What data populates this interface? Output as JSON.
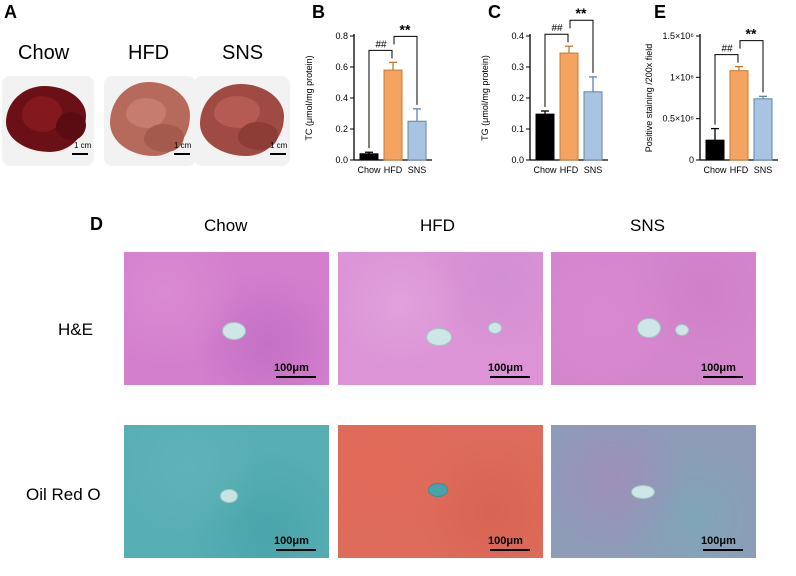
{
  "panels": {
    "A": "A",
    "B": "B",
    "C": "C",
    "D": "D",
    "E": "E"
  },
  "groups": [
    "Chow",
    "HFD",
    "SNS"
  ],
  "liver_scale_label": "1 cm",
  "histology": {
    "rows": [
      "H&E",
      "Oil Red O"
    ],
    "scale_label": "100μm"
  },
  "colors": {
    "Chow": "#000000",
    "HFD": "#f4a460",
    "SNS": "#a9c4e2"
  },
  "chart_data": [
    {
      "panel": "B",
      "type": "bar",
      "categories": [
        "Chow",
        "HFD",
        "SNS"
      ],
      "values": [
        0.04,
        0.58,
        0.25
      ],
      "errors": [
        0.01,
        0.05,
        0.08
      ],
      "ylabel": "TC (μmol/mg protein)",
      "ylim": [
        0,
        0.8
      ],
      "yticks": [
        "0.0",
        "0.2",
        "0.4",
        "0.6",
        "0.8"
      ],
      "annotations": [
        "##",
        "**"
      ]
    },
    {
      "panel": "C",
      "type": "bar",
      "categories": [
        "Chow",
        "HFD",
        "SNS"
      ],
      "values": [
        0.148,
        0.345,
        0.22
      ],
      "errors": [
        0.01,
        0.022,
        0.048
      ],
      "ylabel": "TG (μmol/mg protein)",
      "ylim": [
        0,
        0.4
      ],
      "yticks": [
        "0.0",
        "0.1",
        "0.2",
        "0.3",
        "0.4"
      ],
      "annotations": [
        "##",
        "**"
      ]
    },
    {
      "panel": "E",
      "type": "bar",
      "categories": [
        "Chow",
        "HFD",
        "SNS"
      ],
      "values": [
        240000,
        1080000,
        740000
      ],
      "errors": [
        140000,
        50000,
        30000
      ],
      "ylabel": "Positive staining /200x field",
      "ylim": [
        0,
        1500000
      ],
      "yticks": [
        "0",
        "0.5×10⁶",
        "1×10⁶",
        "1.5×10⁶"
      ],
      "annotations": [
        "##",
        "**"
      ]
    }
  ]
}
